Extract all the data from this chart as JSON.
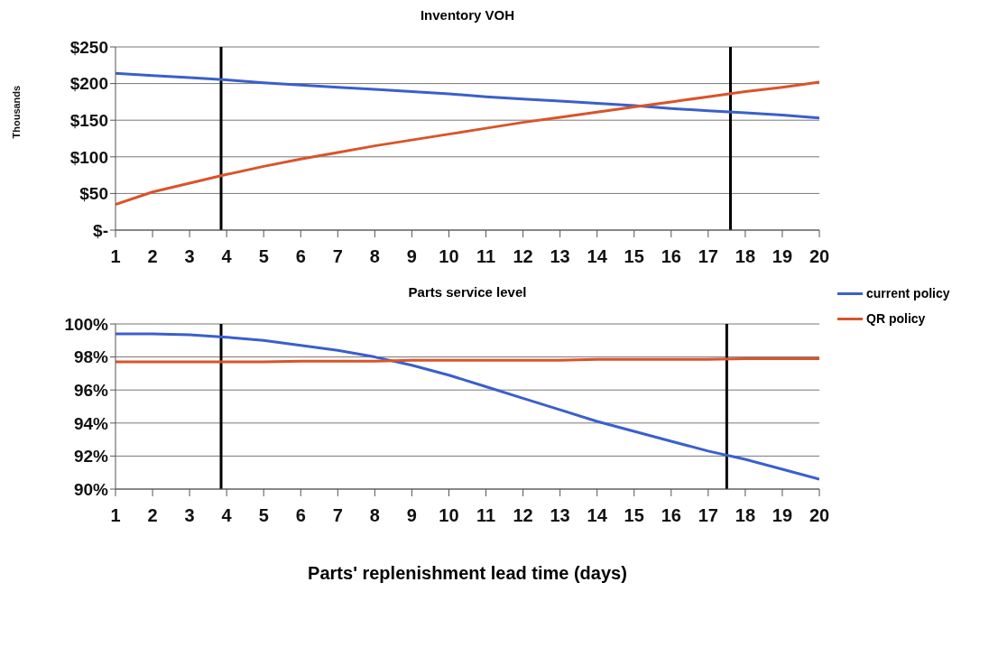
{
  "chart_data": [
    {
      "type": "line",
      "title": "Inventory VOH",
      "ylabel": "Thousands",
      "x": [
        1,
        2,
        3,
        4,
        5,
        6,
        7,
        8,
        9,
        10,
        11,
        12,
        13,
        14,
        15,
        16,
        17,
        18,
        19,
        20
      ],
      "series": [
        {
          "color": "#3a5fcd",
          "values": [
            214,
            211,
            208,
            205,
            201,
            198,
            195,
            192,
            189,
            186,
            182,
            179,
            176,
            173,
            170,
            166,
            163,
            160,
            157,
            153
          ]
        },
        {
          "color": "#d9542a",
          "values": [
            35,
            52,
            64,
            76,
            87,
            97,
            106,
            115,
            123,
            131,
            139,
            147,
            154,
            161,
            168,
            175,
            182,
            189,
            195,
            202
          ]
        }
      ],
      "xlim": [
        1,
        20
      ],
      "xticks": [
        1,
        2,
        3,
        4,
        5,
        6,
        7,
        8,
        9,
        10,
        11,
        12,
        13,
        14,
        15,
        16,
        17,
        18,
        19,
        20
      ],
      "ylim": [
        0,
        250
      ],
      "yticks": [
        {
          "value": 0,
          "label": "$-"
        },
        {
          "value": 50,
          "label": "$50"
        },
        {
          "value": 100,
          "label": "$100"
        },
        {
          "value": 150,
          "label": "$150"
        },
        {
          "value": 200,
          "label": "$200"
        },
        {
          "value": 250,
          "label": "$250"
        }
      ],
      "ref_lines": [
        {
          "axis": "x",
          "value": 3.85,
          "color": "#000000"
        },
        {
          "axis": "x",
          "value": 17.6,
          "color": "#000000"
        }
      ],
      "grid": "y",
      "legend": false,
      "marker": "none",
      "line_style": "solid"
    },
    {
      "type": "line",
      "title": "Parts service level",
      "xlabel": "Parts' replenishment lead time (days)",
      "x": [
        1,
        2,
        3,
        4,
        5,
        6,
        7,
        8,
        9,
        10,
        11,
        12,
        13,
        14,
        15,
        16,
        17,
        18,
        19,
        20
      ],
      "series": [
        {
          "name": "current policy",
          "color": "#3a5fcd",
          "values": [
            99.4,
            99.4,
            99.35,
            99.2,
            99.0,
            98.7,
            98.4,
            98.0,
            97.5,
            96.9,
            96.2,
            95.5,
            94.8,
            94.1,
            93.5,
            92.9,
            92.3,
            91.8,
            91.2,
            90.6
          ]
        },
        {
          "name": "QR policy",
          "color": "#d9542a",
          "values": [
            97.7,
            97.7,
            97.7,
            97.7,
            97.7,
            97.75,
            97.75,
            97.75,
            97.8,
            97.8,
            97.8,
            97.8,
            97.8,
            97.85,
            97.85,
            97.85,
            97.85,
            97.9,
            97.9,
            97.9
          ]
        }
      ],
      "xlim": [
        1,
        20
      ],
      "xticks": [
        1,
        2,
        3,
        4,
        5,
        6,
        7,
        8,
        9,
        10,
        11,
        12,
        13,
        14,
        15,
        16,
        17,
        18,
        19,
        20
      ],
      "ylim": [
        90,
        100
      ],
      "yticks": [
        {
          "value": 90,
          "label": "90%"
        },
        {
          "value": 92,
          "label": "92%"
        },
        {
          "value": 94,
          "label": "94%"
        },
        {
          "value": 96,
          "label": "96%"
        },
        {
          "value": 98,
          "label": "98%"
        },
        {
          "value": 100,
          "label": "100%"
        }
      ],
      "ref_lines": [
        {
          "axis": "x",
          "value": 3.85,
          "color": "#000000"
        },
        {
          "axis": "x",
          "value": 17.5,
          "color": "#000000"
        }
      ],
      "grid": "y",
      "legend": "top right",
      "marker": "none",
      "line_style": "solid"
    }
  ]
}
